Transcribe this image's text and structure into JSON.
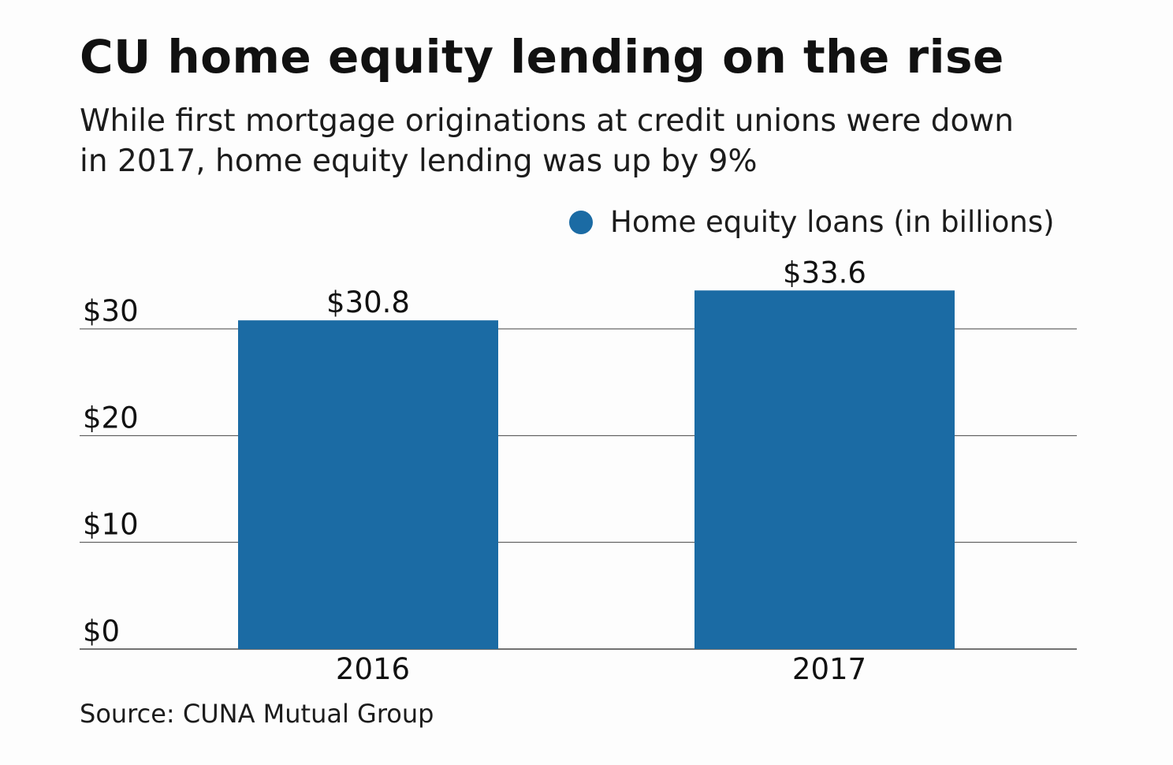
{
  "title": "CU home equity lending on the rise",
  "subtitle": "While first mortgage originations at credit unions were down in 2017, home equity lending was up by 9%",
  "source": "Source: CUNA Mutual Group",
  "colors": {
    "bar": "#1b6ba4",
    "grid": "#444444"
  },
  "chart_data": {
    "type": "bar",
    "categories": [
      "2016",
      "2017"
    ],
    "series": [
      {
        "name": "Home equity loans (in billions)",
        "values": [
          30.8,
          33.6
        ],
        "value_labels": [
          "$30.8",
          "$33.6"
        ]
      }
    ],
    "yticks": [
      0,
      10,
      20,
      30
    ],
    "ytick_labels": [
      "$0",
      "$10",
      "$20",
      "$30"
    ],
    "ylim": [
      0,
      36
    ],
    "grid": true,
    "legend_position": "top-right",
    "xlabel": "",
    "ylabel": ""
  }
}
